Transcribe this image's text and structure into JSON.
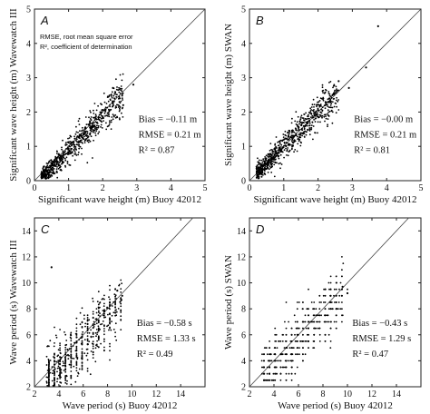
{
  "chart_data": [
    {
      "type": "scatter",
      "panel_letter": "A",
      "xlabel": "Significant wave height (m) Buoy 42012",
      "ylabel": "Significant wave height (m) Wavewatch III",
      "xlim": [
        0,
        5
      ],
      "ylim": [
        0,
        5
      ],
      "xticks": [
        "0",
        "1",
        "2",
        "3",
        "4",
        "5"
      ],
      "yticks": [
        "0",
        "1",
        "2",
        "3",
        "4",
        "5"
      ],
      "notes": [
        "RMSE, root mean square error",
        "R², coefficient of determination"
      ],
      "stats": [
        "Bias = −0.11 m",
        "RMSE = 0.21 m",
        "R² = 0.87"
      ],
      "reference_line": "1:1",
      "grid": false,
      "cloud": {
        "x_range": [
          0.2,
          2.6
        ],
        "bias": -0.11,
        "scatter": 0.21,
        "n": 750
      },
      "outliers": [
        [
          2.3,
          2.7
        ],
        [
          2.9,
          2.8
        ],
        [
          2.5,
          2.4
        ],
        [
          2.6,
          2.2
        ]
      ]
    },
    {
      "type": "scatter",
      "panel_letter": "B",
      "xlabel": "Significant wave height (m) Buoy 42012",
      "ylabel": "Significant wave height (m) SWAN",
      "xlim": [
        0,
        5
      ],
      "ylim": [
        0,
        5
      ],
      "xticks": [
        "0",
        "1",
        "2",
        "3",
        "4",
        "5"
      ],
      "yticks": [
        "0",
        "1",
        "2",
        "3",
        "4",
        "5"
      ],
      "stats": [
        "Bias = −0.00 m",
        "RMSE = 0.21 m",
        "R² = 0.81"
      ],
      "reference_line": "1:1",
      "grid": false,
      "cloud": {
        "x_range": [
          0.2,
          2.6
        ],
        "bias": 0.0,
        "scatter": 0.21,
        "n": 750
      },
      "outliers": [
        [
          3.75,
          4.5
        ],
        [
          3.4,
          3.3
        ],
        [
          2.6,
          2.9
        ],
        [
          2.9,
          2.7
        ]
      ]
    },
    {
      "type": "scatter",
      "panel_letter": "C",
      "xlabel": "Wave period (s) Buoy 42012",
      "ylabel": "Wave period (s) Wavewatch III",
      "xlim": [
        2,
        16
      ],
      "ylim": [
        2,
        15
      ],
      "xticks": [
        "2",
        "4",
        "6",
        "8",
        "10",
        "12",
        "14"
      ],
      "yticks": [
        "2",
        "4",
        "6",
        "8",
        "10",
        "12",
        "14"
      ],
      "stats": [
        "Bias = −0.58 s",
        "RMSE = 1.33 s",
        "R² = 0.49"
      ],
      "reference_line": "1:1",
      "grid": false,
      "cloud": {
        "x_range": [
          3.0,
          9.2
        ],
        "bias": -0.58,
        "scatter": 1.1,
        "n": 650,
        "x_quantized": false
      },
      "outliers": [
        [
          3.4,
          11.2
        ],
        [
          8.8,
          9.4
        ],
        [
          9.2,
          9.0
        ]
      ]
    },
    {
      "type": "scatter",
      "panel_letter": "D",
      "xlabel": "Wave period (s) Buoy 42012",
      "ylabel": "Wave period (s) SWAN",
      "xlim": [
        2,
        16
      ],
      "ylim": [
        2,
        15
      ],
      "xticks": [
        "2",
        "4",
        "6",
        "8",
        "10",
        "12",
        "14"
      ],
      "yticks": [
        "2",
        "4",
        "6",
        "8",
        "10",
        "12",
        "14"
      ],
      "stats": [
        "Bias = −0.43 s",
        "RMSE = 1.29 s",
        "R² = 0.47"
      ],
      "reference_line": "1:1",
      "grid": false,
      "cloud": {
        "x_range": [
          3.0,
          9.8
        ],
        "bias": -0.43,
        "scatter": 1.1,
        "n": 600,
        "y_quantized": 0.5
      },
      "outliers": [
        [
          9.6,
          9.7
        ],
        [
          10.0,
          9.2
        ]
      ]
    }
  ]
}
